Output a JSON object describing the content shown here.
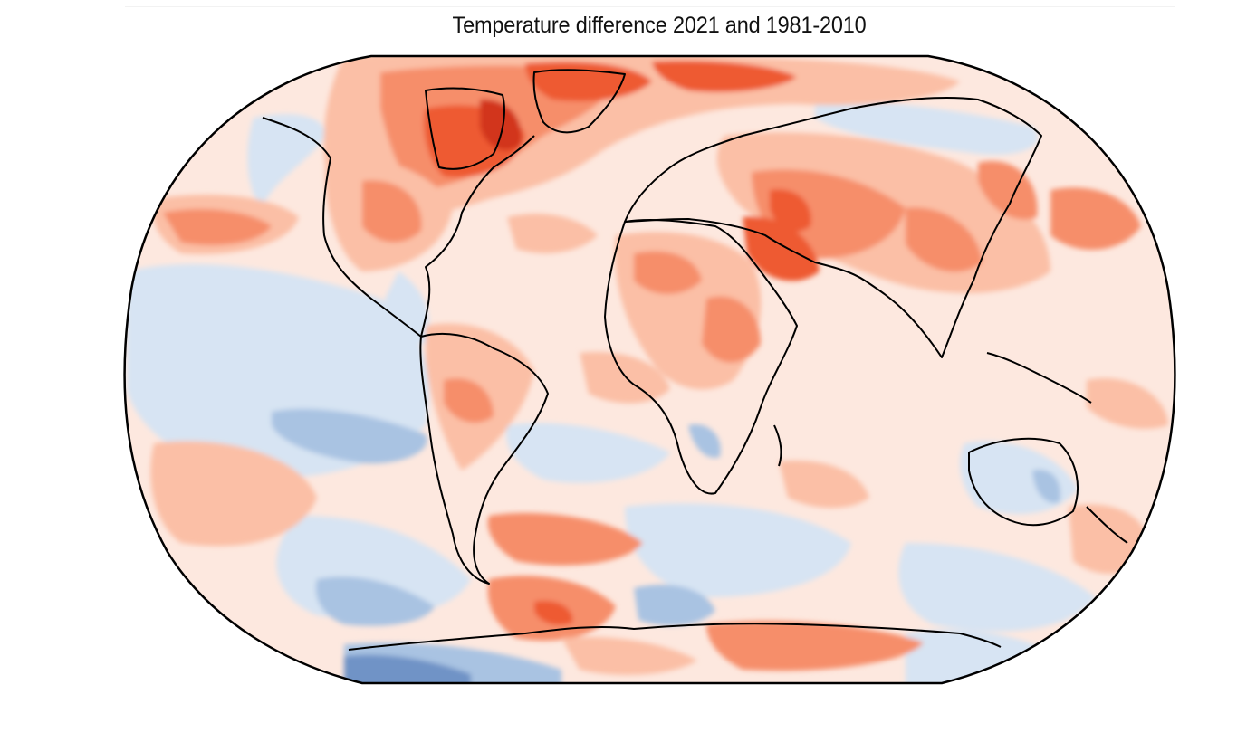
{
  "title": "Temperature difference 2021 and 1981-2010",
  "colors": {
    "deep_blue": "#6f93c6",
    "mid_blue": "#a9c3e2",
    "light_blue": "#d7e4f3",
    "near_zero": "#fde8df",
    "light_red": "#fbbfa6",
    "mid_red": "#f68e6b",
    "strong_red": "#ee5a33",
    "deep_red": "#d2361a",
    "coastline": "#000000"
  },
  "projection": "Robinson"
}
